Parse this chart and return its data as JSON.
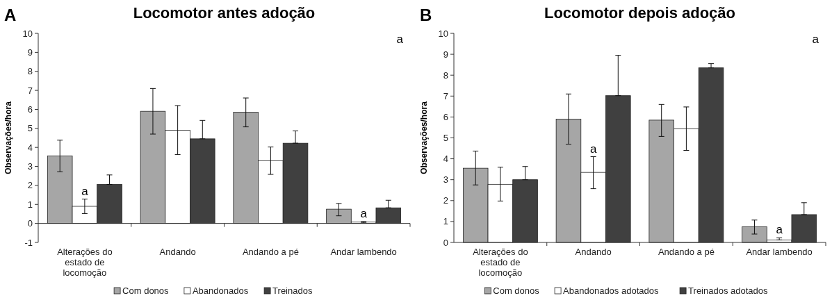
{
  "chart_data": [
    {
      "type": "bar",
      "title": "Locomotor antes adoção",
      "ylabel": "Observações/hora",
      "categories": [
        "Alterações do estado de locomoção",
        "Andando",
        "Andando a pé",
        "Andar lambendo"
      ],
      "series": [
        {
          "name": "Com donos",
          "color": "#a6a6a6",
          "values": [
            3.55,
            5.9,
            5.85,
            0.75
          ],
          "errors": [
            [
              2.72,
              4.38
            ],
            [
              4.7,
              7.1
            ],
            [
              5.08,
              6.6
            ],
            [
              0.4,
              1.05
            ]
          ]
        },
        {
          "name": "Abandonados",
          "color": "#ffffff",
          "values": [
            0.9,
            4.9,
            3.3,
            0.07
          ],
          "errors": [
            [
              0.52,
              1.28
            ],
            [
              3.62,
              6.2
            ],
            [
              2.58,
              4.02
            ],
            [
              0.03,
              0.1
            ]
          ]
        },
        {
          "name": "Treinados",
          "color": "#404040",
          "values": [
            2.05,
            4.45,
            4.22,
            0.82
          ],
          "errors": [
            [
              2.05,
              2.55
            ],
            [
              4.45,
              5.42
            ],
            [
              4.22,
              4.87
            ],
            [
              0.82,
              1.22
            ]
          ]
        }
      ],
      "ylim": [
        -1,
        10
      ],
      "yticks": [
        -1,
        0,
        1,
        2,
        3,
        4,
        5,
        6,
        7,
        8,
        9,
        10
      ],
      "legend": "bottom",
      "annotations": [
        "A",
        {
          "text": "a",
          "x": "Alterações do estado de locomoção",
          "y": 0.9
        },
        "a",
        {
          "text": "a",
          "x": "Andar lambendo",
          "y": 0.07
        }
      ]
    },
    {
      "type": "bar",
      "title": "Locomotor depois adoção",
      "ylabel": "Observações/hora",
      "categories": [
        "Alterações do estado de locomoção",
        "Andando",
        "Andando a pé",
        "Andar lambendo"
      ],
      "series": [
        {
          "name": "Com donos",
          "color": "#a6a6a6",
          "values": [
            3.55,
            5.9,
            5.85,
            0.75
          ],
          "errors": [
            [
              2.75,
              4.37
            ],
            [
              4.7,
              7.1
            ],
            [
              5.07,
              6.6
            ],
            [
              0.4,
              1.07
            ]
          ]
        },
        {
          "name": "Abandonados adotados",
          "color": "#ffffff",
          "values": [
            2.78,
            3.35,
            5.43,
            0.12
          ],
          "errors": [
            [
              1.98,
              3.6
            ],
            [
              2.57,
              4.1
            ],
            [
              4.4,
              6.48
            ],
            [
              0.12,
              0.22
            ]
          ]
        },
        {
          "name": "Treinados adotados",
          "color": "#404040",
          "values": [
            3.0,
            7.02,
            8.35,
            1.33
          ],
          "errors": [
            [
              3.0,
              3.63
            ],
            [
              7.02,
              8.95
            ],
            [
              8.35,
              8.55
            ],
            [
              1.33,
              1.9
            ]
          ]
        }
      ],
      "ylim": [
        0,
        10
      ],
      "yticks": [
        0,
        1,
        2,
        3,
        4,
        5,
        6,
        7,
        8,
        9,
        10
      ],
      "legend": "bottom",
      "annotations": [
        "B",
        {
          "text": "a",
          "x": "Andando",
          "y": 3.35
        },
        "a",
        {
          "text": "a",
          "x": "Andar lambendo",
          "y": 0.12
        }
      ]
    }
  ]
}
